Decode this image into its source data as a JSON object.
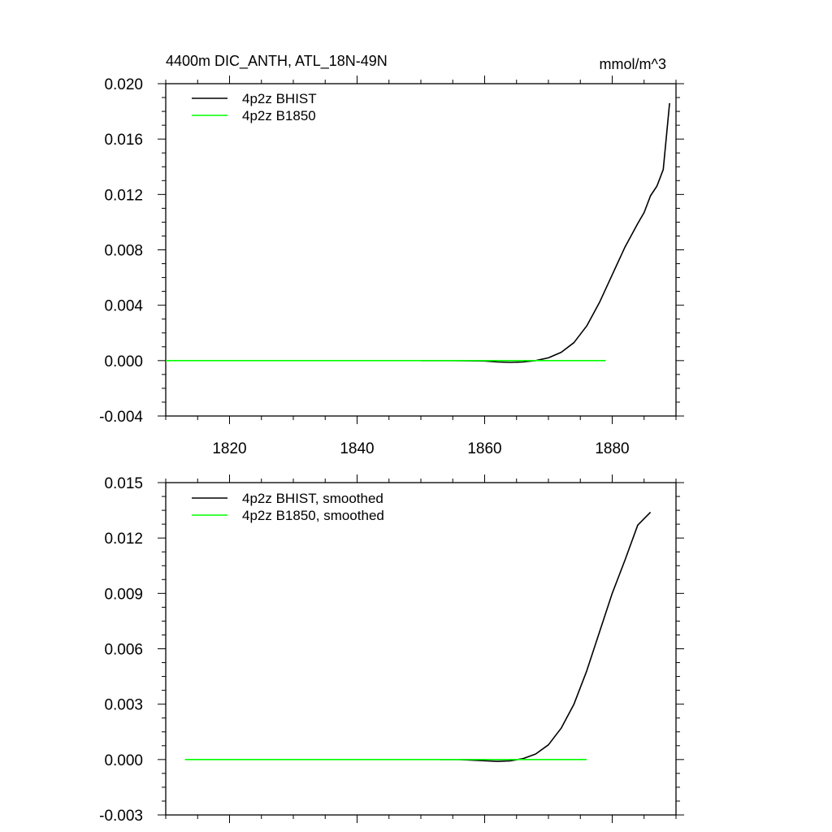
{
  "chart_data": [
    {
      "type": "line",
      "title": "4400m DIC_ANTH, ATL_18N-49N",
      "title_right": "mmol/m^3",
      "xlabel": "",
      "ylabel": "",
      "xlim": [
        1810,
        1890
      ],
      "ylim": [
        -0.004,
        0.02
      ],
      "x_ticks": [
        1820,
        1840,
        1860,
        1880
      ],
      "x_tick_labels": [
        "1820",
        "1840",
        "1860",
        "1880"
      ],
      "y_ticks": [
        -0.004,
        0.0,
        0.004,
        0.008,
        0.012,
        0.016,
        0.02
      ],
      "y_tick_labels": [
        "-0.004",
        "0.000",
        "0.004",
        "0.008",
        "0.012",
        "0.016",
        "0.020"
      ],
      "grid": false,
      "legend_position": "top-left",
      "series": [
        {
          "name": "4p2z BHIST",
          "color": "#000000",
          "x": [
            1850,
            1855,
            1860,
            1862,
            1864,
            1866,
            1868,
            1870,
            1872,
            1874,
            1876,
            1878,
            1880,
            1882,
            1884,
            1885,
            1886,
            1887,
            1888,
            1889
          ],
          "y": [
            0.0,
            0.0,
            -3e-05,
            -0.0001,
            -0.00013,
            -0.0001,
            0.0,
            0.0002,
            0.0006,
            0.0013,
            0.0025,
            0.0042,
            0.0062,
            0.0082,
            0.0099,
            0.0107,
            0.0119,
            0.0126,
            0.0138,
            0.0186
          ]
        },
        {
          "name": "4p2z B1850",
          "color": "#00ff00",
          "x": [
            1810,
            1879
          ],
          "y": [
            0.0,
            0.0
          ]
        }
      ]
    },
    {
      "type": "line",
      "title": "",
      "xlabel": "",
      "ylabel": "",
      "xlim": [
        1810,
        1890
      ],
      "ylim": [
        -0.003,
        0.015
      ],
      "x_ticks": [
        1820,
        1840,
        1860,
        1880
      ],
      "x_tick_labels": [],
      "y_ticks": [
        -0.003,
        0.0,
        0.003,
        0.006,
        0.009,
        0.012,
        0.015
      ],
      "y_tick_labels": [
        "-0.003",
        "0.000",
        "0.003",
        "0.006",
        "0.009",
        "0.012",
        "0.015"
      ],
      "grid": false,
      "legend_position": "top-left",
      "series": [
        {
          "name": "4p2z BHIST, smoothed",
          "color": "#000000",
          "x": [
            1853,
            1856,
            1859,
            1862,
            1864,
            1866,
            1868,
            1870,
            1872,
            1874,
            1876,
            1878,
            1880,
            1882,
            1884,
            1886
          ],
          "y": [
            0.0,
            0.0,
            -5e-05,
            -0.0001,
            -7e-05,
            5e-05,
            0.0003,
            0.0008,
            0.0017,
            0.003,
            0.0048,
            0.0069,
            0.009,
            0.0108,
            0.0127,
            0.0134
          ]
        },
        {
          "name": "4p2z B1850, smoothed",
          "color": "#00ff00",
          "x": [
            1813,
            1876
          ],
          "y": [
            0.0,
            0.0
          ]
        }
      ]
    }
  ]
}
